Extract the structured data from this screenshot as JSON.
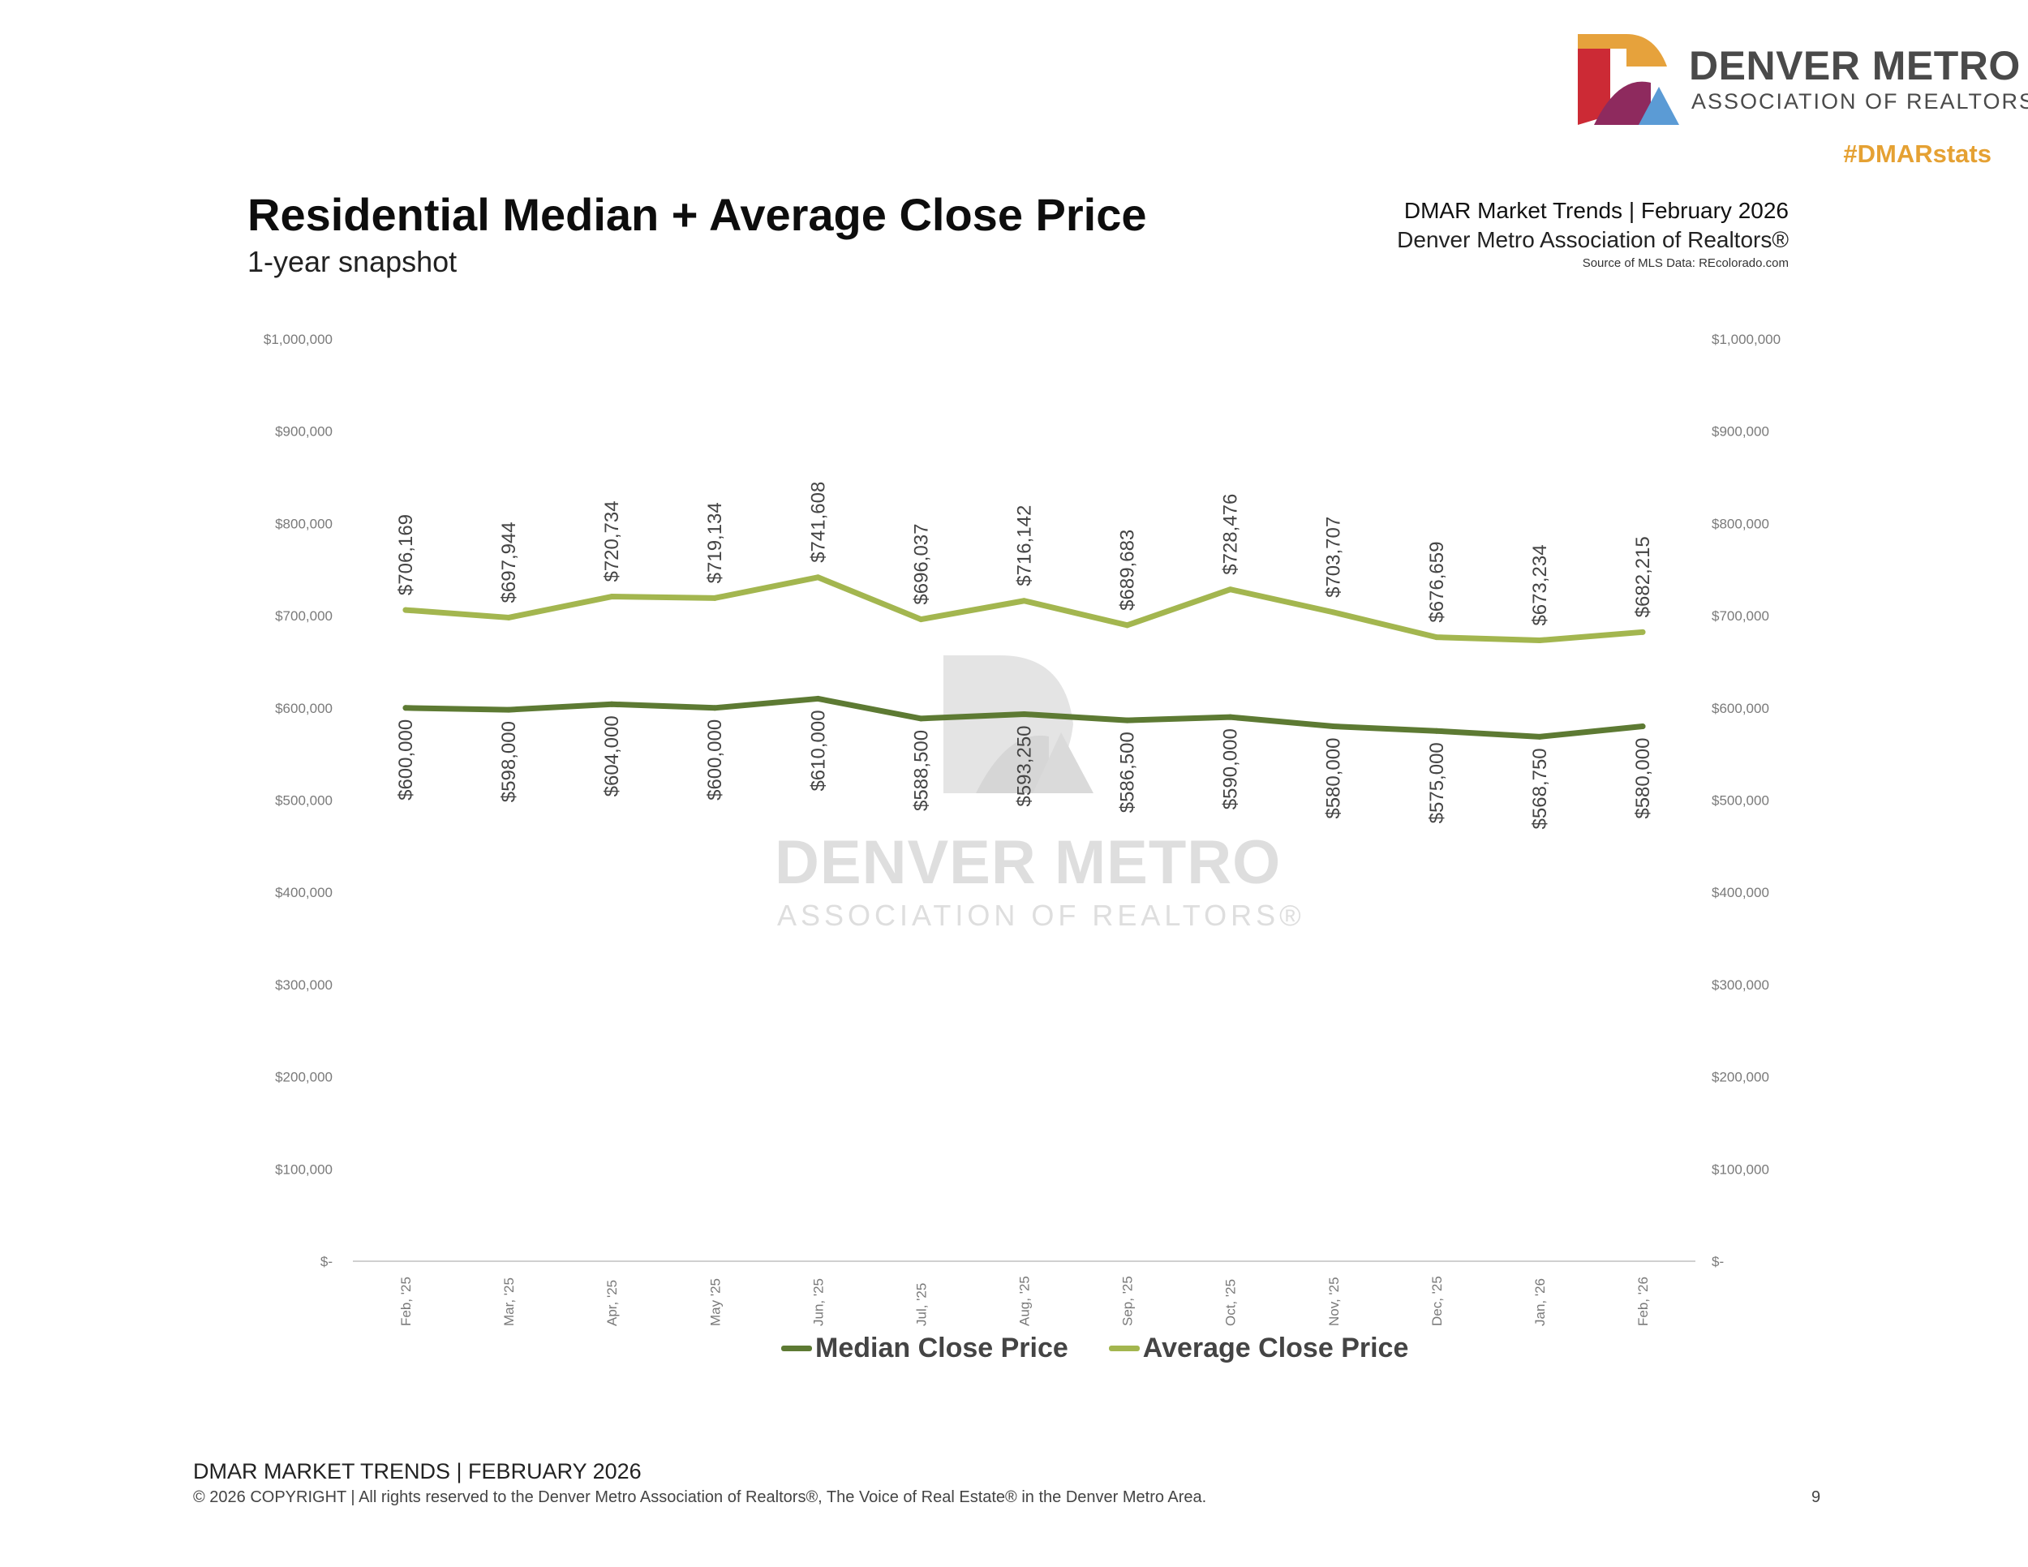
{
  "header": {
    "logo_line1": "DENVER METRO",
    "logo_line2": "ASSOCIATION OF REALTORS®",
    "hashtag": "#DMARstats",
    "report_title": "DMAR Market Trends | February 2026",
    "org": "Denver Metro Association of Realtors®",
    "source": "Source of MLS Data: REcolorado.com"
  },
  "watermark": {
    "line1": "DENVER METRO",
    "line2": "ASSOCIATION OF REALTORS®"
  },
  "colors": {
    "median": "#5d7a33",
    "average": "#a3b64f",
    "logo_orange": "#e6a23c",
    "logo_red": "#cc2a35",
    "logo_purple": "#8e2a5e",
    "logo_blue": "#5b9bd5",
    "hashtag": "#e5a133"
  },
  "chart_data": {
    "type": "line",
    "title": "Residential Median + Average Close Price",
    "subtitle": "1-year snapshot",
    "categories": [
      "Feb, '25",
      "Mar, '25",
      "Apr, '25",
      "May '25",
      "Jun, '25",
      "Jul, '25",
      "Aug, '25",
      "Sep, '25",
      "Oct, '25",
      "Nov, '25",
      "Dec, '25",
      "Jan, '26",
      "Feb, '26"
    ],
    "series": [
      {
        "name": "Median Close Price",
        "values": [
          600000,
          598000,
          604000,
          600000,
          610000,
          588500,
          593250,
          586500,
          590000,
          580000,
          575000,
          568750,
          580000
        ],
        "labels": [
          "$600,000",
          "$598,000",
          "$604,000",
          "$600,000",
          "$610,000",
          "$588,500",
          "$593,250",
          "$586,500",
          "$590,000",
          "$580,000",
          "$575,000",
          "$568,750",
          "$580,000"
        ]
      },
      {
        "name": "Average Close Price",
        "values": [
          706169,
          697944,
          720734,
          719134,
          741608,
          696037,
          716142,
          689683,
          728476,
          703707,
          676659,
          673234,
          682215
        ],
        "labels": [
          "$706,169",
          "$697,944",
          "$720,734",
          "$719,134",
          "$741,608",
          "$696,037",
          "$716,142",
          "$689,683",
          "$728,476",
          "$703,707",
          "$676,659",
          "$673,234",
          "$682,215"
        ]
      }
    ],
    "ylim": [
      0,
      1000000
    ],
    "y_ticks": [
      0,
      100000,
      200000,
      300000,
      400000,
      500000,
      600000,
      700000,
      800000,
      900000,
      1000000
    ],
    "y_tick_labels": [
      "$-",
      "$100,000",
      "$200,000",
      "$300,000",
      "$400,000",
      "$500,000",
      "$600,000",
      "$700,000",
      "$800,000",
      "$900,000",
      "$1,000,000"
    ],
    "secondary_axis": true,
    "grid": false,
    "legend_position": "bottom"
  },
  "footer": {
    "line1": "DMAR MARKET TRENDS | FEBRUARY 2026",
    "line2": "© 2026 COPYRIGHT | All rights reserved to the Denver Metro Association of Realtors®, The Voice of Real Estate® in the Denver Metro Area.",
    "page_number": "9"
  }
}
